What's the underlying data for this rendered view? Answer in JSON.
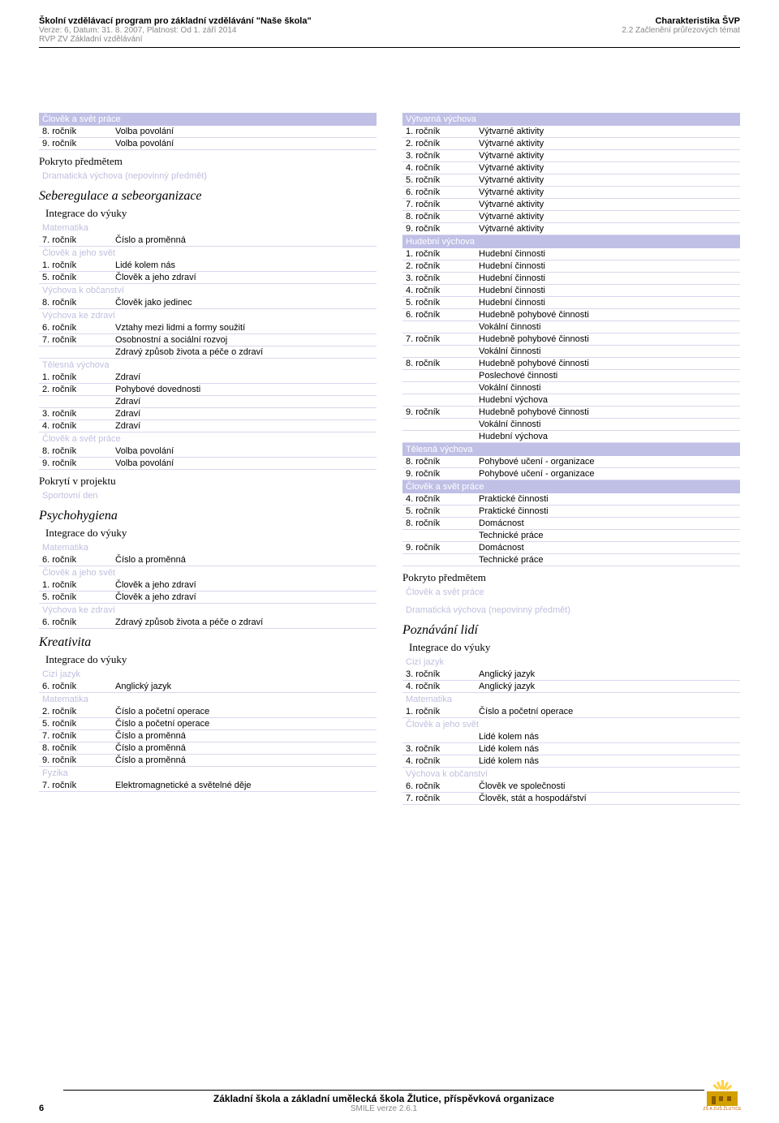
{
  "colors": {
    "subject_bg": "#c0bfe6",
    "subject_fg": "#ffffff",
    "subheader_fg": "#bfbfe0",
    "row_border": "#d8d8ef",
    "muted": "#888888"
  },
  "header": {
    "left1": "Školní vzdělávací program pro základní vzdělávání \"Naše škola\"",
    "left2": "Verze: 6, Datum: 31. 8. 2007, Platnost: Od 1. září 2014",
    "left3": "RVP ZV Základní vzdělávání",
    "right1": "Charakteristika ŠVP",
    "right2": "2.2 Začlenění průřezových témat"
  },
  "left_col": {
    "block1_header": "Člověk a svět práce",
    "block1_rows": [
      [
        "8. ročník",
        "Volba povolání"
      ],
      [
        "9. ročník",
        "Volba povolání"
      ]
    ],
    "pokryto1": "Pokryto předmětem",
    "pokryto1_sub": "Dramatická výchova (nepovinný předmět)",
    "title1": "Seberegulace a sebeorganizace",
    "integrace": "Integrace do výuky",
    "s1_sub1": "Matematika",
    "s1_rows1": [
      [
        "7. ročník",
        "Číslo a proměnná"
      ]
    ],
    "s1_sub2": "Člověk a jeho svět",
    "s1_rows2": [
      [
        "1. ročník",
        "Lidé kolem nás"
      ],
      [
        "5. ročník",
        "Člověk a jeho zdraví"
      ]
    ],
    "s1_sub3": "Výchova k občanství",
    "s1_rows3": [
      [
        "8. ročník",
        "Člověk jako jedinec"
      ]
    ],
    "s1_sub4": "Výchova ke zdraví",
    "s1_rows4": [
      [
        "6. ročník",
        "Vztahy mezi lidmi a formy soužití"
      ],
      [
        "7. ročník",
        "Osobnostní a sociální rozvoj"
      ],
      [
        "",
        "Zdravý způsob života a péče o zdraví"
      ]
    ],
    "s1_sub5": "Tělesná výchova",
    "s1_rows5": [
      [
        "1. ročník",
        "Zdraví"
      ],
      [
        "2. ročník",
        "Pohybové dovednosti"
      ],
      [
        "",
        "Zdraví"
      ],
      [
        "3. ročník",
        "Zdraví"
      ],
      [
        "4. ročník",
        "Zdraví"
      ]
    ],
    "s1_sub6": "Člověk a svět práce",
    "s1_rows6": [
      [
        "8. ročník",
        "Volba povolání"
      ],
      [
        "9. ročník",
        "Volba povolání"
      ]
    ],
    "pokryti_proj": "Pokrytí v projektu",
    "pokryti_proj_sub": "Sportovní den",
    "title2": "Psychohygiena",
    "s2_sub1": "Matematika",
    "s2_rows1": [
      [
        "6. ročník",
        "Číslo a proměnná"
      ]
    ],
    "s2_sub2": "Člověk a jeho svět",
    "s2_rows2": [
      [
        "1. ročník",
        "Člověk a jeho zdraví"
      ],
      [
        "5. ročník",
        "Člověk a jeho zdraví"
      ]
    ],
    "s2_sub3": "Výchova ke zdraví",
    "s2_rows3": [
      [
        "6. ročník",
        "Zdravý způsob života a péče o zdraví"
      ]
    ],
    "title3": "Kreativita",
    "s3_sub1": "Cizí jazyk",
    "s3_rows1": [
      [
        "6. ročník",
        "Anglický jazyk"
      ]
    ],
    "s3_sub2": "Matematika",
    "s3_rows2": [
      [
        "2. ročník",
        "Číslo  a početní operace"
      ],
      [
        "5. ročník",
        "Číslo  a početní operace"
      ],
      [
        "7. ročník",
        "Číslo a proměnná"
      ],
      [
        "8. ročník",
        "Číslo a proměnná"
      ],
      [
        "9. ročník",
        "Číslo a proměnná"
      ]
    ],
    "s3_sub3": "Fyzika",
    "s3_rows3": [
      [
        "7. ročník",
        "Elektromagnetické a světelné děje"
      ]
    ]
  },
  "right_col": {
    "r1_header": "Výtvarná výchova",
    "r1_rows": [
      [
        "1. ročník",
        "Výtvarné aktivity"
      ],
      [
        "2. ročník",
        "Výtvarné aktivity"
      ],
      [
        "3. ročník",
        "Výtvarné aktivity"
      ],
      [
        "4. ročník",
        "Výtvarné aktivity"
      ],
      [
        "5. ročník",
        "Výtvarné aktivity"
      ],
      [
        "6. ročník",
        "Výtvarné aktivity"
      ],
      [
        "7. ročník",
        "Výtvarné aktivity"
      ],
      [
        "8. ročník",
        "Výtvarné aktivity"
      ],
      [
        "9. ročník",
        "Výtvarné aktivity"
      ]
    ],
    "r2_header": "Hudební výchova",
    "r2_rows": [
      [
        "1. ročník",
        "Hudební činnosti"
      ],
      [
        "2. ročník",
        "Hudební činnosti"
      ],
      [
        "3. ročník",
        "Hudební činnosti"
      ],
      [
        "4. ročník",
        "Hudební činnosti"
      ],
      [
        "5. ročník",
        "Hudební činnosti"
      ],
      [
        "6. ročník",
        "Hudebně pohybové činnosti"
      ],
      [
        "",
        "Vokální činnosti"
      ],
      [
        "7. ročník",
        "Hudebně pohybové činnosti"
      ],
      [
        "",
        "Vokální činnosti"
      ],
      [
        "8. ročník",
        "Hudebně pohybové činnosti"
      ],
      [
        "",
        "Poslechové činnosti"
      ],
      [
        "",
        "Vokální činnosti"
      ],
      [
        "",
        "Hudební výchova"
      ],
      [
        "9. ročník",
        "Hudebně pohybové činnosti"
      ],
      [
        "",
        "Vokální činnosti"
      ],
      [
        "",
        "Hudební výchova"
      ]
    ],
    "r3_header": "Tělesná výchova",
    "r3_rows": [
      [
        "8. ročník",
        "Pohybové učení - organizace"
      ],
      [
        "9. ročník",
        "Pohybové učení - organizace"
      ]
    ],
    "r4_header": "Člověk a svět práce",
    "r4_rows": [
      [
        "4. ročník",
        "Praktické činnosti"
      ],
      [
        "5. ročník",
        "Praktické činnosti"
      ],
      [
        "8. ročník",
        "Domácnost"
      ],
      [
        "",
        "Technické práce"
      ],
      [
        "9. ročník",
        "Domácnost"
      ],
      [
        "",
        "Technické práce"
      ]
    ],
    "pokryto": "Pokryto předmětem",
    "pokryto_sub1": "Člověk a svět práce",
    "pokryto_sub2": "Dramatická výchova (nepovinný předmět)",
    "title": "Poznávání lidí",
    "integrace": "Integrace do výuky",
    "p_sub1": "Cizí jazyk",
    "p_rows1": [
      [
        "3. ročník",
        "Anglický jazyk"
      ],
      [
        "4. ročník",
        "Anglický jazyk"
      ]
    ],
    "p_sub2": "Matematika",
    "p_rows2": [
      [
        "1. ročník",
        "Číslo  a početní operace"
      ]
    ],
    "p_sub3": "Člověk a jeho svět",
    "p_rows3": [
      [
        "",
        "Lidé kolem nás"
      ],
      [
        "3. ročník",
        "Lidé kolem nás"
      ],
      [
        "4. ročník",
        "Lidé kolem nás"
      ]
    ],
    "p_sub4": "Výchova k občanství",
    "p_rows4": [
      [
        "6. ročník",
        "Člověk ve společnosti"
      ],
      [
        "7. ročník",
        "Člověk, stát a hospodářství"
      ]
    ]
  },
  "footer": {
    "page": "6",
    "org": "Základní škola a základní umělecká škola Žlutice, příspěvková organizace",
    "smile": "SMILE verze 2.6.1",
    "logo_text": "ZŠ A ZUŠ ŽLUTICE"
  }
}
